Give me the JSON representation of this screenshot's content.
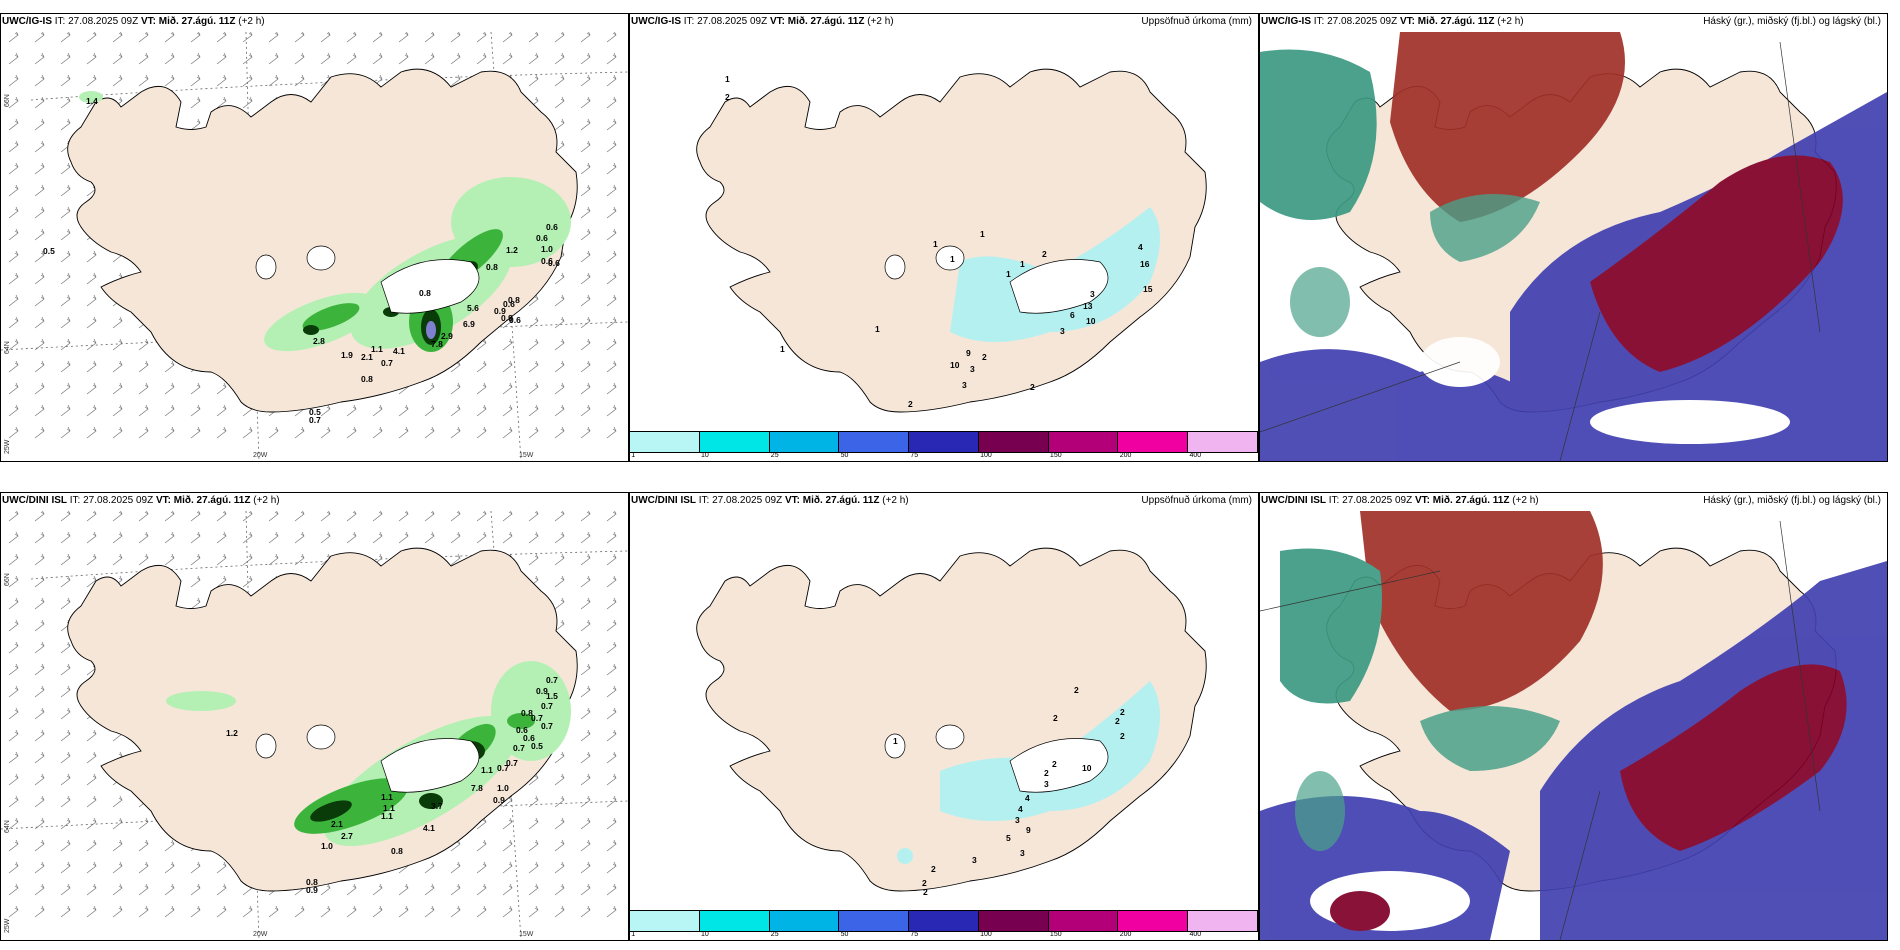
{
  "panels": {
    "p1": {
      "model": "UWC/IG-IS",
      "it_label": "IT:",
      "it": "27.08.2025 09Z",
      "vt_label": "VT:",
      "vt": "Mið. 27.ágú. 11Z",
      "lead": "(+2 h)"
    },
    "p2": {
      "model": "UWC/IG-IS",
      "it_label": "IT:",
      "it": "27.08.2025 09Z",
      "vt_label": "VT:",
      "vt": "Mið. 27.ágú. 11Z",
      "lead": "(+2 h)",
      "right_title": "Uppsöfnuð úrkoma (mm)"
    },
    "p3": {
      "model": "UWC/IG-IS",
      "it_label": "IT:",
      "it": "27.08.2025 09Z",
      "vt_label": "VT:",
      "vt": "Mið. 27.ágú. 11Z",
      "lead": "(+2 h)",
      "right_title": "Háský (gr.), miðský (fj.bl.) og lágský (bl.)"
    },
    "p4": {
      "model": "UWC/DINI ISL",
      "it_label": "IT:",
      "it": "27.08.2025 09Z",
      "vt_label": "VT:",
      "vt": "Mið. 27.ágú. 11Z",
      "lead": "(+2 h)"
    },
    "p5": {
      "model": "UWC/DINI ISL",
      "it_label": "IT:",
      "it": "27.08.2025 09Z",
      "vt_label": "VT:",
      "vt": "Mið. 27.ágú. 11Z",
      "lead": "(+2 h)",
      "right_title": "Uppsöfnuð úrkoma (mm)"
    },
    "p6": {
      "model": "UWC/DINI ISL",
      "it_label": "IT:",
      "it": "27.08.2025 09Z",
      "vt_label": "VT:",
      "vt": "Mið. 27.ágú. 11Z",
      "lead": "(+2 h)",
      "right_title": "Háský (gr.), miðský (fj.bl.) og lágský (bl.)"
    }
  },
  "axes": {
    "lat66": "66N",
    "lat64": "64N",
    "lon25": "25W",
    "lon20": "20W",
    "lon15": "15W"
  },
  "colorbar": {
    "ticks": [
      "1",
      "10",
      "25",
      "50",
      "75",
      "100",
      "150",
      "200",
      "400"
    ],
    "colors": [
      "#b8f5f5",
      "#00e6e6",
      "#00b4e6",
      "#3c64e6",
      "#2828b4",
      "#780050",
      "#b40078",
      "#f000a0",
      "#f0b4f0"
    ]
  },
  "colors": {
    "land": "#f5e6d8",
    "precip_light": "#b4f0b4",
    "precip_mid": "#3cb43c",
    "precip_dark": "#0a3c0a",
    "acc_cyan": "#b4f0f0",
    "high_cloud": "#a03028",
    "mid_cloud": "#4040b0",
    "low_cloud": "#3c9a82",
    "deep_red": "#800028"
  },
  "p1_labels": [
    "1.4",
    "0.5",
    "0.6",
    "0.6",
    "1.0",
    "0.6",
    "0.6",
    "1.2",
    "0.8",
    "0.8",
    "0.8",
    "0.9",
    "0.9",
    "0.6",
    "5.6",
    "6.9",
    "0.6",
    "2.8",
    "4.1",
    "7.8",
    "2.9",
    "1.9",
    "2.1",
    "0.7",
    "1.1",
    "0.8",
    "0.5",
    "0.7"
  ],
  "p4_labels": [
    "0.7",
    "0.9",
    "1.5",
    "0.7",
    "0.8",
    "0.7",
    "0.7",
    "0.6",
    "0.6",
    "0.5",
    "1.2",
    "0.7",
    "0.7",
    "0.7",
    "1.1",
    "1.1",
    "1.1",
    "1.0",
    "0.9",
    "7.8",
    "3.7",
    "4.1",
    "1.1",
    "2.1",
    "2.7",
    "1.0",
    "0.8",
    "0.8",
    "0.9"
  ],
  "p2_labels": [
    "1",
    "2",
    "1",
    "1",
    "1",
    "1",
    "1",
    "1",
    "1",
    "2",
    "4",
    "3",
    "6",
    "9",
    "3",
    "10",
    "3",
    "2",
    "3",
    "13",
    "10",
    "16",
    "15",
    "2",
    "2"
  ],
  "p5_labels": [
    "2",
    "2",
    "2",
    "2",
    "2",
    "1",
    "2",
    "2",
    "3",
    "10",
    "4",
    "4",
    "3",
    "9",
    "5",
    "3",
    "3",
    "2",
    "2",
    "2"
  ]
}
